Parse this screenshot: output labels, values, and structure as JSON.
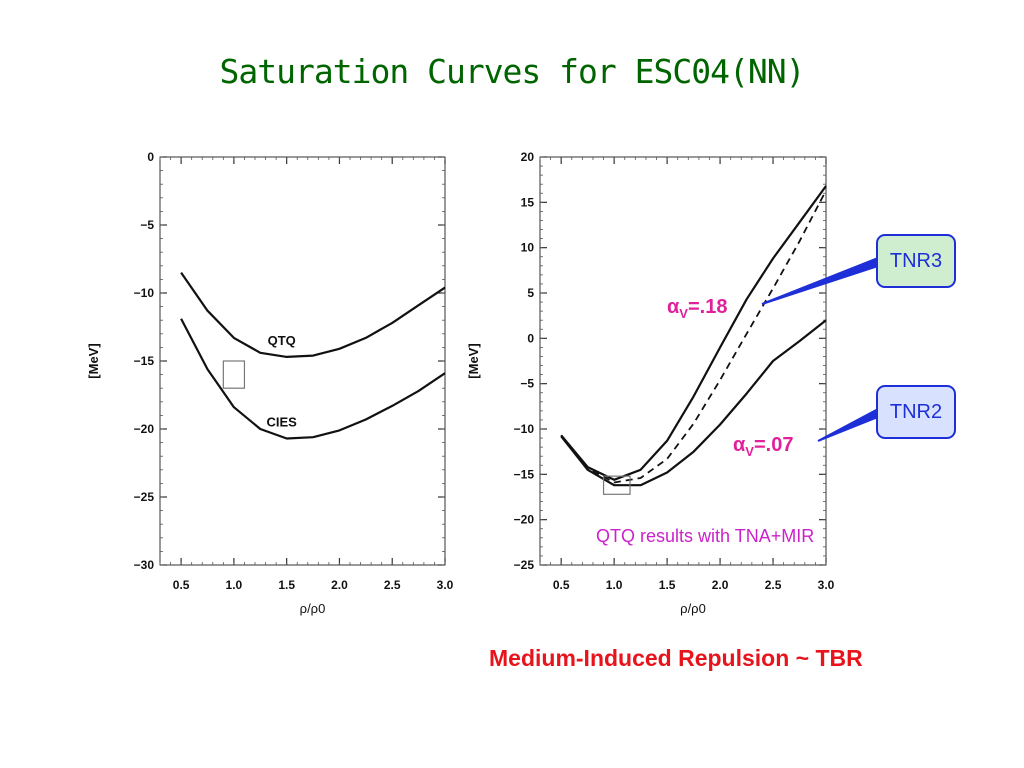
{
  "slide_title": "Saturation Curves for ESC04(NN)",
  "footer": "Medium-Induced Repulsion ~ TBR",
  "note": "QTQ results with TNA+MIR",
  "callouts": [
    {
      "label": "TNR3",
      "alpha_prefix": "α",
      "alpha_sub": "V",
      "alpha_value": "=.18",
      "color": "#cfeecf"
    },
    {
      "label": "TNR2",
      "alpha_prefix": "α",
      "alpha_sub": "V",
      "alpha_value": "=.07",
      "color": "#d8e2ff"
    }
  ],
  "colors": {
    "title": "#006400",
    "footer": "#e8141c",
    "alpha": "#e0219b",
    "note": "#cc22cc",
    "callout_border": "#1f2fd8"
  },
  "chart_data": [
    {
      "type": "line",
      "xlabel": "ρ/ρ0",
      "ylabel": "[MeV]",
      "xlim": [
        0.3,
        3.0
      ],
      "ylim": [
        -30,
        0
      ],
      "xticks": [
        "0.5",
        "1.0",
        "1.5",
        "2.0",
        "2.5",
        "3.0"
      ],
      "yticks": [
        "0",
        "−5",
        "−10",
        "−15",
        "−20",
        "−25",
        "−30"
      ],
      "grid": false,
      "series": [
        {
          "name": "QTQ",
          "style": "solid",
          "x": [
            0.5,
            0.75,
            1.0,
            1.25,
            1.5,
            1.75,
            2.0,
            2.25,
            2.5,
            2.75,
            3.0
          ],
          "y": [
            -8.5,
            -11.3,
            -13.3,
            -14.4,
            -14.7,
            -14.6,
            -14.1,
            -13.3,
            -12.2,
            -10.9,
            -9.6
          ]
        },
        {
          "name": "CIES",
          "style": "solid",
          "x": [
            0.5,
            0.75,
            1.0,
            1.25,
            1.5,
            1.75,
            2.0,
            2.25,
            2.5,
            2.75,
            3.0
          ],
          "y": [
            -11.9,
            -15.6,
            -18.4,
            -20.0,
            -20.7,
            -20.6,
            -20.1,
            -19.3,
            -18.3,
            -17.2,
            -15.9
          ]
        }
      ],
      "annotations": [
        {
          "type": "box",
          "x": [
            0.9,
            1.1
          ],
          "y": [
            -15,
            -17
          ]
        }
      ]
    },
    {
      "type": "line",
      "xlabel": "ρ/ρ0",
      "ylabel": "[MeV]",
      "xlim": [
        0.3,
        3.0
      ],
      "ylim": [
        -25,
        20
      ],
      "xticks": [
        "0.5",
        "1.0",
        "1.5",
        "2.0",
        "2.5",
        "3.0"
      ],
      "yticks": [
        "20",
        "15",
        "10",
        "5",
        "0",
        "−5",
        "−10",
        "−15",
        "−20",
        "−25"
      ],
      "grid": false,
      "series": [
        {
          "style": "solid",
          "x": [
            0.5,
            0.75,
            1.0,
            1.25,
            1.5,
            1.75,
            2.0,
            2.25,
            2.5,
            2.75,
            3.0
          ],
          "y": [
            -10.7,
            -14.2,
            -15.6,
            -14.5,
            -11.3,
            -6.4,
            -1.0,
            4.3,
            8.8,
            12.8,
            16.8
          ]
        },
        {
          "style": "dashed",
          "x": [
            0.5,
            0.75,
            1.0,
            1.25,
            1.5,
            1.75,
            2.0,
            2.25,
            2.5,
            2.75,
            3.0
          ],
          "y": [
            -10.7,
            -14.3,
            -15.9,
            -15.4,
            -13.3,
            -9.4,
            -4.6,
            0.5,
            5.5,
            10.7,
            16.3
          ]
        },
        {
          "style": "solid",
          "x": [
            0.5,
            0.75,
            1.0,
            1.25,
            1.5,
            1.75,
            2.0,
            2.25,
            2.5,
            2.75,
            3.0
          ],
          "y": [
            -10.8,
            -14.5,
            -16.2,
            -16.2,
            -14.8,
            -12.5,
            -9.5,
            -6.1,
            -2.5,
            -0.3,
            2.0
          ]
        }
      ],
      "annotations": [
        {
          "type": "box",
          "x": [
            0.9,
            1.15
          ],
          "y": [
            -15.2,
            -17.2
          ]
        }
      ]
    }
  ]
}
